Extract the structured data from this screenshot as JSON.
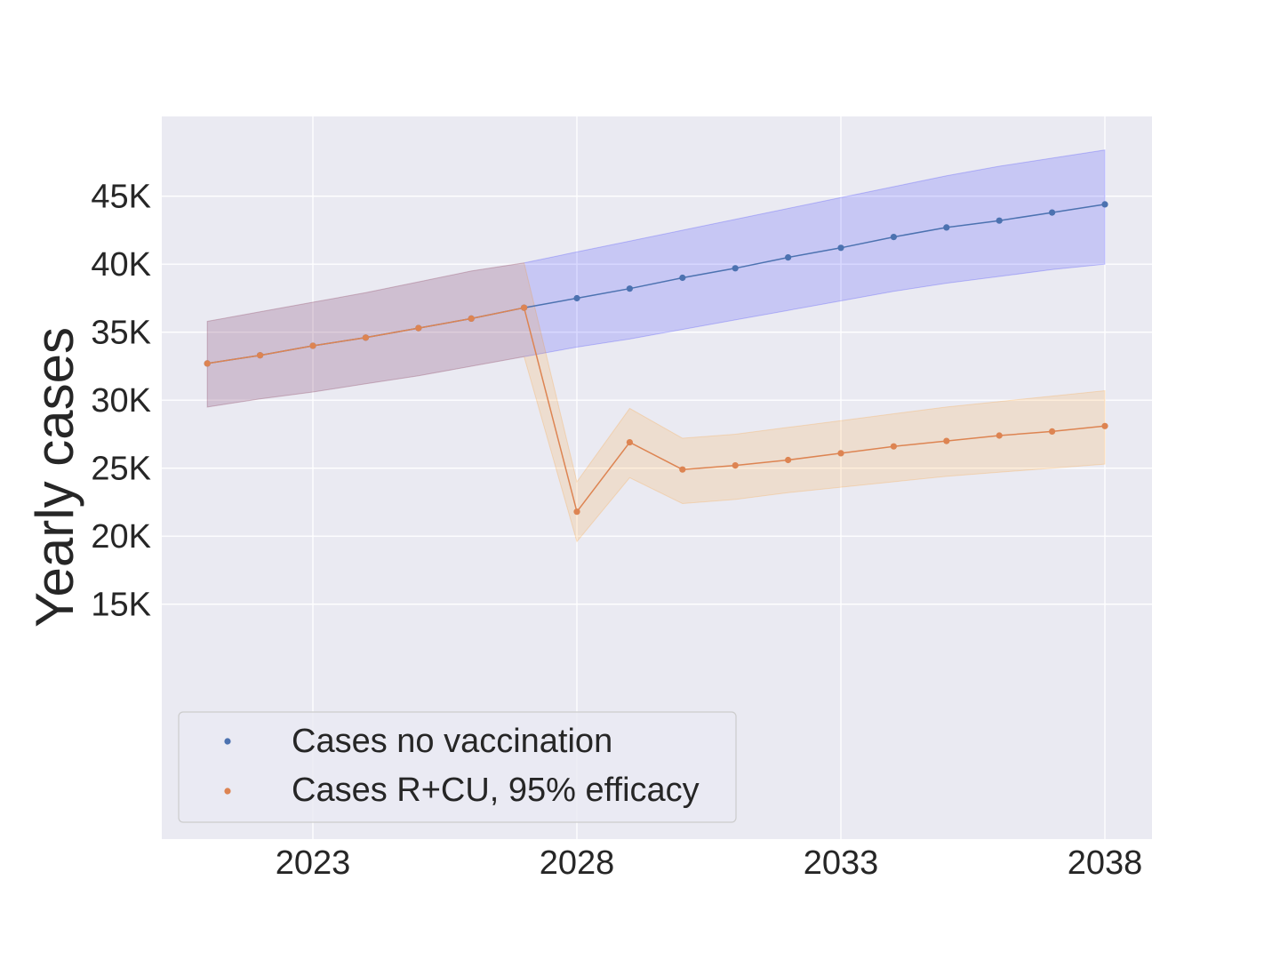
{
  "chart_data": {
    "type": "line",
    "title": "",
    "xlabel": "",
    "ylabel": "Yearly cases",
    "x": [
      2021,
      2022,
      2023,
      2024,
      2025,
      2026,
      2027,
      2028,
      2029,
      2030,
      2031,
      2032,
      2033,
      2034,
      2035,
      2036,
      2037,
      2038
    ],
    "x_ticks": [
      2023,
      2028,
      2033,
      2038
    ],
    "x_tick_labels": [
      "2023",
      "2028",
      "2033",
      "2038"
    ],
    "xlim": [
      2020.1,
      2038.8
    ],
    "y_ticks": [
      15000,
      20000,
      25000,
      30000,
      35000,
      40000,
      45000
    ],
    "y_tick_labels": [
      "15K",
      "20K",
      "25K",
      "30K",
      "35K",
      "40K",
      "45K"
    ],
    "ylim": [
      0,
      50700
    ],
    "grid": true,
    "legend_position": "lower-left",
    "series": [
      {
        "name": "Cases no vaccination",
        "color": "#4C72B0",
        "band_color": "#0000ff",
        "x": [
          2021,
          2022,
          2023,
          2024,
          2025,
          2026,
          2027,
          2028,
          2029,
          2030,
          2031,
          2032,
          2033,
          2034,
          2035,
          2036,
          2037,
          2038
        ],
        "values": [
          32700,
          33300,
          34000,
          34600,
          35300,
          36000,
          36800,
          37500,
          38200,
          39000,
          39700,
          40500,
          41200,
          42000,
          42700,
          43200,
          43800,
          44400
        ],
        "lower": [
          29500,
          30100,
          30600,
          31200,
          31800,
          32500,
          33200,
          33900,
          34500,
          35200,
          35900,
          36600,
          37300,
          38000,
          38600,
          39100,
          39600,
          40000
        ],
        "upper": [
          35800,
          36500,
          37200,
          37900,
          38700,
          39500,
          40100,
          40900,
          41700,
          42500,
          43300,
          44100,
          44900,
          45700,
          46500,
          47200,
          47800,
          48400
        ]
      },
      {
        "name": "Cases R+CU, 95% efficacy",
        "color": "#DD8452",
        "band_color": "#ff8c00",
        "x": [
          2021,
          2022,
          2023,
          2024,
          2025,
          2026,
          2027,
          2028,
          2029,
          2030,
          2031,
          2032,
          2033,
          2034,
          2035,
          2036,
          2037,
          2038
        ],
        "values": [
          32700,
          33300,
          34000,
          34600,
          35300,
          36000,
          36800,
          21800,
          26900,
          24900,
          25200,
          25600,
          26100,
          26600,
          27000,
          27400,
          27700,
          28100
        ],
        "lower": [
          29500,
          30100,
          30600,
          31200,
          31800,
          32500,
          33200,
          19600,
          24300,
          22400,
          22700,
          23200,
          23600,
          24000,
          24400,
          24700,
          25000,
          25300
        ],
        "upper": [
          35800,
          36500,
          37200,
          37900,
          38700,
          39500,
          40100,
          24000,
          29400,
          27200,
          27500,
          28000,
          28500,
          29000,
          29500,
          29900,
          30300,
          30700
        ]
      }
    ]
  }
}
